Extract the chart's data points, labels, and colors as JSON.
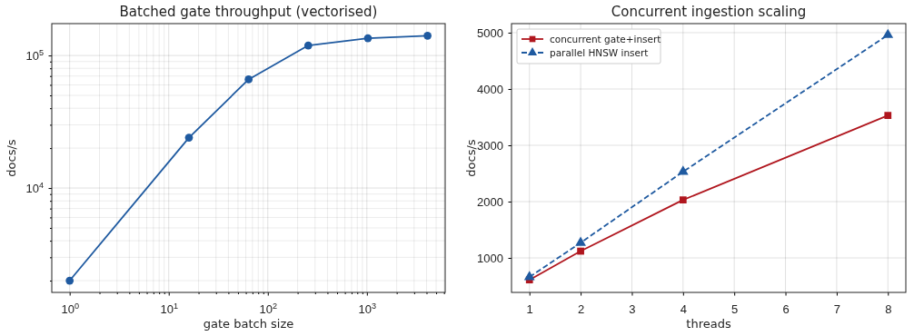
{
  "chart_data": [
    {
      "type": "line",
      "title": "Batched gate throughput (vectorised)",
      "xlabel": "gate batch size",
      "ylabel": "docs/s",
      "log": "xy",
      "grid": true,
      "marker": "circle",
      "line_style": "solid",
      "legend": false,
      "x": [
        1,
        16,
        64,
        256,
        1024,
        4096
      ],
      "series": [
        {
          "color": "#1f5aa0",
          "values": [
            2000,
            24000,
            66000,
            119000,
            135000,
            141000
          ]
        }
      ],
      "xlim": [
        0.66,
        6170
      ],
      "ylim": [
        1630,
        174000
      ],
      "xticks": [
        {
          "value": 1,
          "label": "10$^{0}$"
        },
        {
          "value": 2,
          "label": null
        },
        {
          "value": 3,
          "label": null
        },
        {
          "value": 4,
          "label": null
        },
        {
          "value": 5,
          "label": null
        },
        {
          "value": 6,
          "label": null
        },
        {
          "value": 7,
          "label": null
        },
        {
          "value": 8,
          "label": null
        },
        {
          "value": 9,
          "label": null
        },
        {
          "value": 10,
          "label": "10$^{1}$"
        },
        {
          "value": 20,
          "label": null
        },
        {
          "value": 30,
          "label": null
        },
        {
          "value": 40,
          "label": null
        },
        {
          "value": 50,
          "label": null
        },
        {
          "value": 60,
          "label": null
        },
        {
          "value": 70,
          "label": null
        },
        {
          "value": 80,
          "label": null
        },
        {
          "value": 90,
          "label": null
        },
        {
          "value": 100,
          "label": "10$^{2}$"
        },
        {
          "value": 200,
          "label": null
        },
        {
          "value": 300,
          "label": null
        },
        {
          "value": 400,
          "label": null
        },
        {
          "value": 500,
          "label": null
        },
        {
          "value": 600,
          "label": null
        },
        {
          "value": 700,
          "label": null
        },
        {
          "value": 800,
          "label": null
        },
        {
          "value": 900,
          "label": null
        },
        {
          "value": 1000,
          "label": "10$^{3}$"
        },
        {
          "value": 2000,
          "label": null
        },
        {
          "value": 3000,
          "label": null
        },
        {
          "value": 4000,
          "label": null
        },
        {
          "value": 5000,
          "label": null
        },
        {
          "value": 6000,
          "label": null
        }
      ],
      "yticks": [
        {
          "value": 2000,
          "label": null
        },
        {
          "value": 3000,
          "label": null
        },
        {
          "value": 4000,
          "label": null
        },
        {
          "value": 5000,
          "label": null
        },
        {
          "value": 6000,
          "label": null
        },
        {
          "value": 7000,
          "label": null
        },
        {
          "value": 8000,
          "label": null
        },
        {
          "value": 9000,
          "label": null
        },
        {
          "value": 10000,
          "label": "10$^{4}$"
        },
        {
          "value": 20000,
          "label": null
        },
        {
          "value": 30000,
          "label": null
        },
        {
          "value": 40000,
          "label": null
        },
        {
          "value": 50000,
          "label": null
        },
        {
          "value": 60000,
          "label": null
        },
        {
          "value": 70000,
          "label": null
        },
        {
          "value": 80000,
          "label": null
        },
        {
          "value": 90000,
          "label": null
        },
        {
          "value": 100000,
          "label": "10$^{5}$"
        }
      ]
    },
    {
      "type": "line",
      "title": "Concurrent ingestion scaling",
      "xlabel": "threads",
      "ylabel": "docs/s",
      "grid": true,
      "legend": "top left",
      "x": [
        1,
        2,
        4,
        8
      ],
      "series": [
        {
          "name": "concurrent gate+insert",
          "color": "#b0161e",
          "marker": "square",
          "line_style": "solid",
          "values": [
            610,
            1120,
            2030,
            3530
          ]
        },
        {
          "name": "parallel HNSW insert",
          "color": "#1f5aa0",
          "marker": "triangle",
          "line_style": "dashed",
          "values": [
            660,
            1270,
            2530,
            4960
          ]
        }
      ],
      "xlim": [
        0.65,
        8.35
      ],
      "ylim": [
        387,
        5161
      ],
      "xticks": [
        1,
        2,
        3,
        4,
        5,
        6,
        7,
        8
      ],
      "yticks": [
        1000,
        2000,
        3000,
        4000,
        5000
      ]
    }
  ]
}
